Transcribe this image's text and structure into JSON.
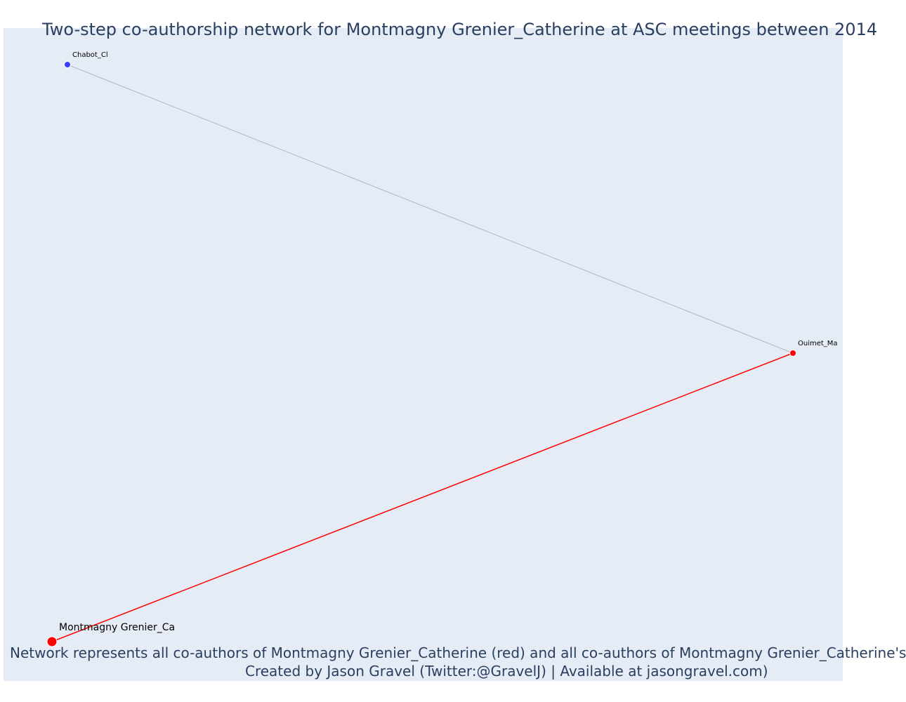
{
  "title": "Two-step co-authorship network for Montmagny Grenier_Catherine at ASC meetings between 2014",
  "caption": {
    "line1": "Network represents all co-authors of Montmagny Grenier_Catherine (red) and all co-authors of Montmagny Grenier_Catherine's",
    "line2": "Created by Jason Gravel (Twitter:@GravelJ) | Available at jasongravel.com)"
  },
  "colors": {
    "plot_background": "#e5ecf6",
    "title_text": "#2a3f5f",
    "first_step": "#ff0000",
    "second_step_node": "#3c3cff",
    "second_step_edge": "#b4b4c8"
  },
  "nodes": [
    {
      "id": "montmagny",
      "label": "Montmagny Grenier_Ca",
      "step": "ego"
    },
    {
      "id": "ouimet",
      "label": "Ouimet_Ma",
      "step": "first"
    },
    {
      "id": "chabot",
      "label": "Chabot_Cl",
      "step": "second"
    }
  ],
  "edges": [
    {
      "source": "montmagny",
      "target": "ouimet",
      "step": "first"
    },
    {
      "source": "ouimet",
      "target": "chabot",
      "step": "second"
    }
  ]
}
